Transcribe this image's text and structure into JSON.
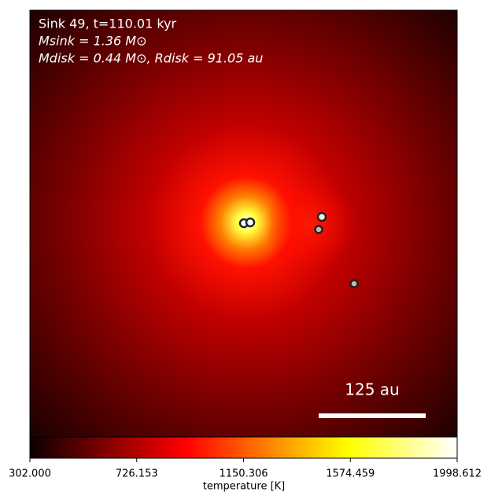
{
  "chart_data": {
    "type": "heatmap",
    "annotations": [
      "Sink 49, t=110.01 kyr",
      "Msink = 1.36 M⊙",
      "Mdisk = 0.44 M⊙, Rdisk = 91.05 au"
    ],
    "scale_bar_label": "125 au",
    "colorbar_label": "temperature [K]",
    "clim": [
      302.0,
      1998.612
    ],
    "cticks": [
      {
        "value": 302.0,
        "label": "302.000"
      },
      {
        "value": 726.153,
        "label": "726.153"
      },
      {
        "value": 1150.306,
        "label": "1150.306"
      },
      {
        "value": 1574.459,
        "label": "1574.459"
      },
      {
        "value": 1998.612,
        "label": "1998.612"
      }
    ],
    "colormap": "hot"
  }
}
